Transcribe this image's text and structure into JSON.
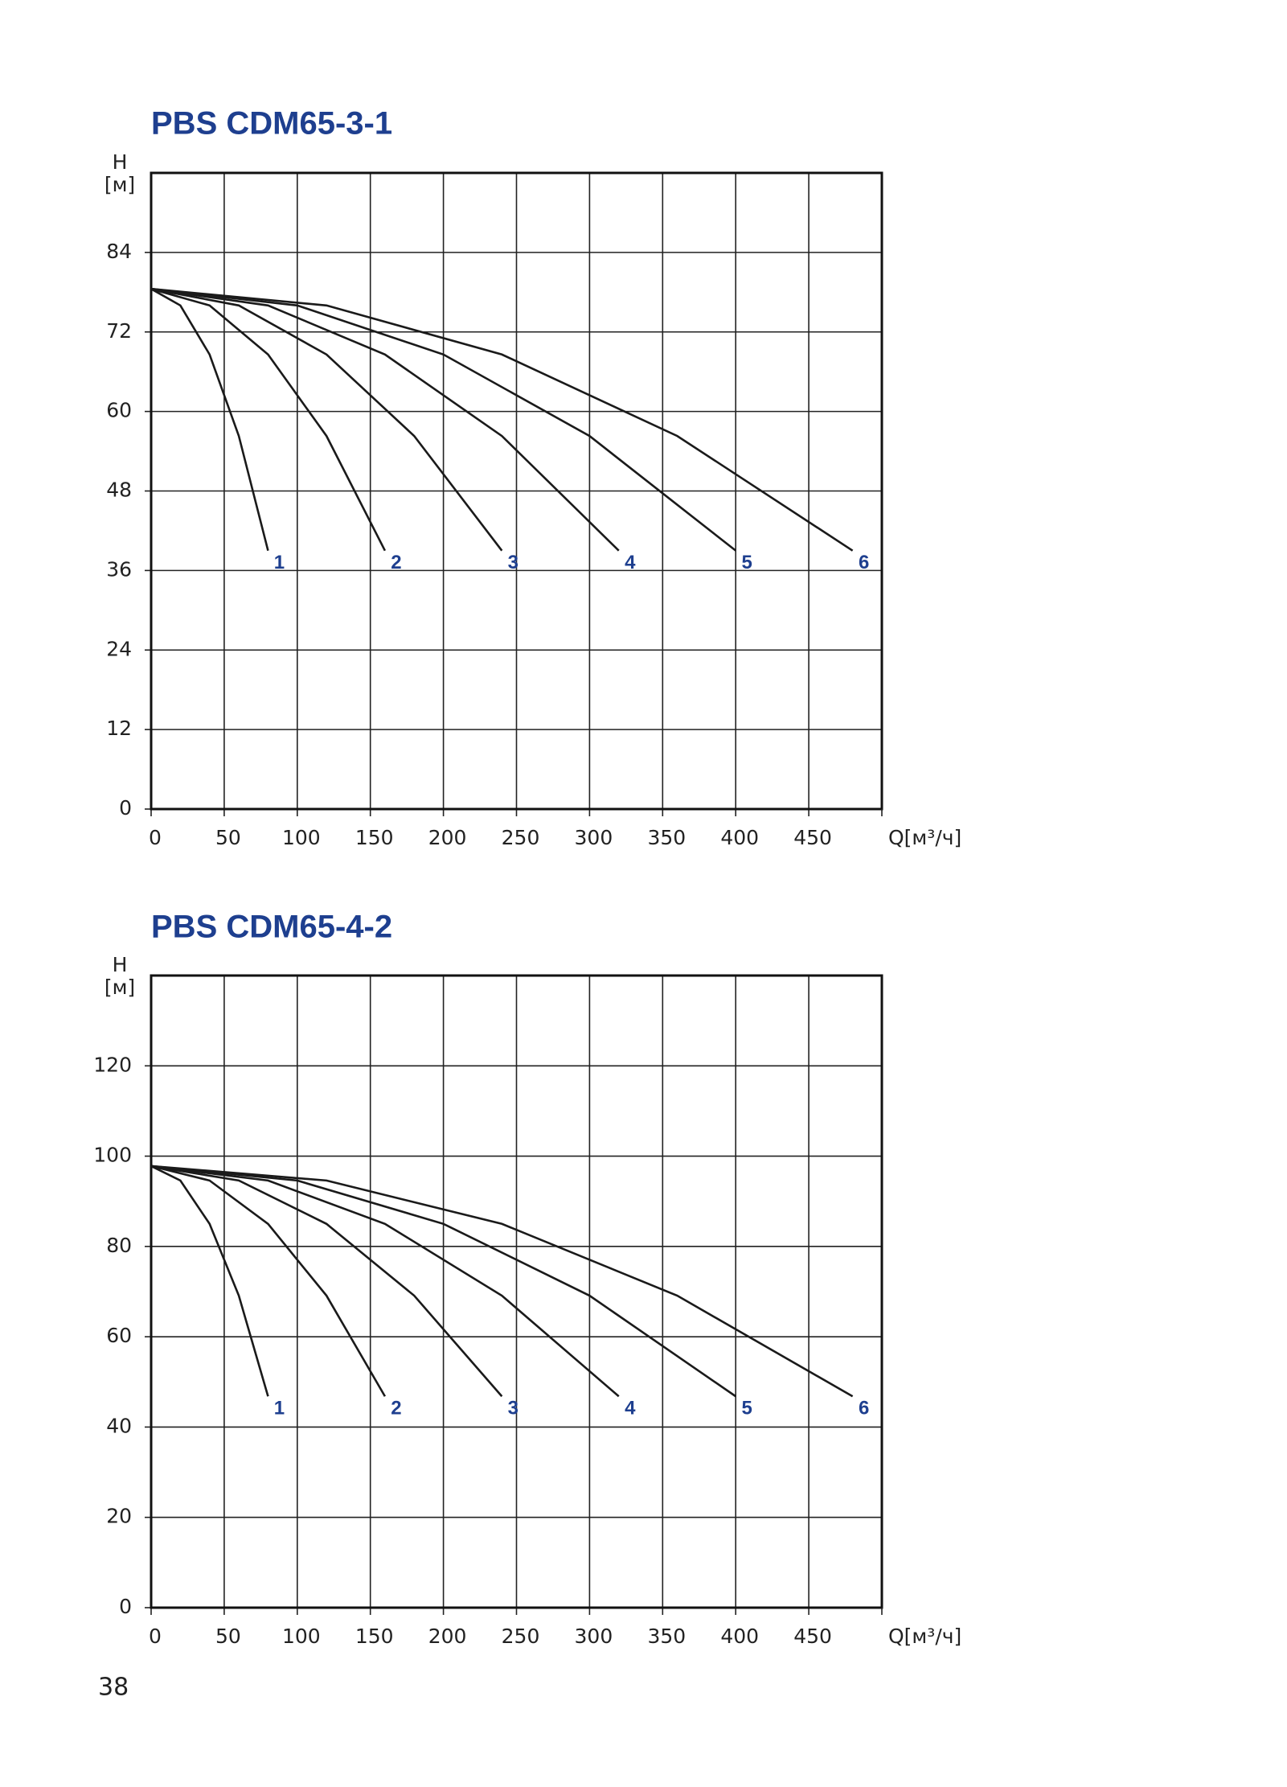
{
  "chart_data": [
    {
      "type": "line",
      "title": "PBS CDM65-3-1",
      "ylabel": "H",
      "ylabel_unit": "[м]",
      "xlabel": "Q[м³/ч]",
      "xlim": [
        0,
        500
      ],
      "xticks": [
        0,
        50,
        100,
        150,
        200,
        250,
        300,
        350,
        400,
        450
      ],
      "ylim": [
        0,
        96
      ],
      "yticks": [
        0,
        12,
        24,
        36,
        48,
        60,
        72,
        84
      ],
      "grid": true,
      "series": [
        {
          "name": "1",
          "color": "#1a1a1a",
          "x": [
            0,
            20,
            40,
            60,
            80
          ],
          "values": [
            78.5,
            76.0,
            68.6,
            56.3,
            39.0
          ]
        },
        {
          "name": "2",
          "color": "#1a1a1a",
          "x": [
            0,
            40,
            80,
            120,
            160
          ],
          "values": [
            78.5,
            76.0,
            68.6,
            56.3,
            39.0
          ]
        },
        {
          "name": "3",
          "color": "#1a1a1a",
          "x": [
            0,
            60,
            120,
            180,
            240
          ],
          "values": [
            78.5,
            76.0,
            68.6,
            56.3,
            39.0
          ]
        },
        {
          "name": "4",
          "color": "#1a1a1a",
          "x": [
            0,
            80,
            160,
            240,
            320
          ],
          "values": [
            78.5,
            76.0,
            68.6,
            56.3,
            39.0
          ]
        },
        {
          "name": "5",
          "color": "#1a1a1a",
          "x": [
            0,
            100,
            200,
            300,
            400
          ],
          "values": [
            78.5,
            76.0,
            68.6,
            56.3,
            39.0
          ]
        },
        {
          "name": "6",
          "color": "#1a1a1a",
          "x": [
            0,
            120,
            240,
            360,
            480
          ],
          "values": [
            78.5,
            76.0,
            68.6,
            56.3,
            39.0
          ]
        }
      ]
    },
    {
      "type": "line",
      "title": "PBS CDM65-4-2",
      "ylabel": "H",
      "ylabel_unit": "[м]",
      "xlabel": "Q[м³/ч]",
      "xlim": [
        0,
        500
      ],
      "xticks": [
        0,
        50,
        100,
        150,
        200,
        250,
        300,
        350,
        400,
        450
      ],
      "ylim": [
        0,
        140
      ],
      "yticks": [
        0,
        20,
        40,
        60,
        80,
        100,
        120
      ],
      "grid": true,
      "series": [
        {
          "name": "1",
          "color": "#1a1a1a",
          "x": [
            0,
            20,
            40,
            60,
            80
          ],
          "values": [
            97.8,
            94.6,
            85.0,
            69.1,
            46.8
          ]
        },
        {
          "name": "2",
          "color": "#1a1a1a",
          "x": [
            0,
            40,
            80,
            120,
            160
          ],
          "values": [
            97.8,
            94.6,
            85.0,
            69.1,
            46.8
          ]
        },
        {
          "name": "3",
          "color": "#1a1a1a",
          "x": [
            0,
            60,
            120,
            180,
            240
          ],
          "values": [
            97.8,
            94.6,
            85.0,
            69.1,
            46.8
          ]
        },
        {
          "name": "4",
          "color": "#1a1a1a",
          "x": [
            0,
            80,
            160,
            240,
            320
          ],
          "values": [
            97.8,
            94.6,
            85.0,
            69.1,
            46.8
          ]
        },
        {
          "name": "5",
          "color": "#1a1a1a",
          "x": [
            0,
            100,
            200,
            300,
            400
          ],
          "values": [
            97.8,
            94.6,
            85.0,
            69.1,
            46.8
          ]
        },
        {
          "name": "6",
          "color": "#1a1a1a",
          "x": [
            0,
            120,
            240,
            360,
            480
          ],
          "values": [
            97.8,
            94.6,
            85.0,
            69.1,
            46.8
          ]
        }
      ]
    }
  ],
  "page_number": "38"
}
